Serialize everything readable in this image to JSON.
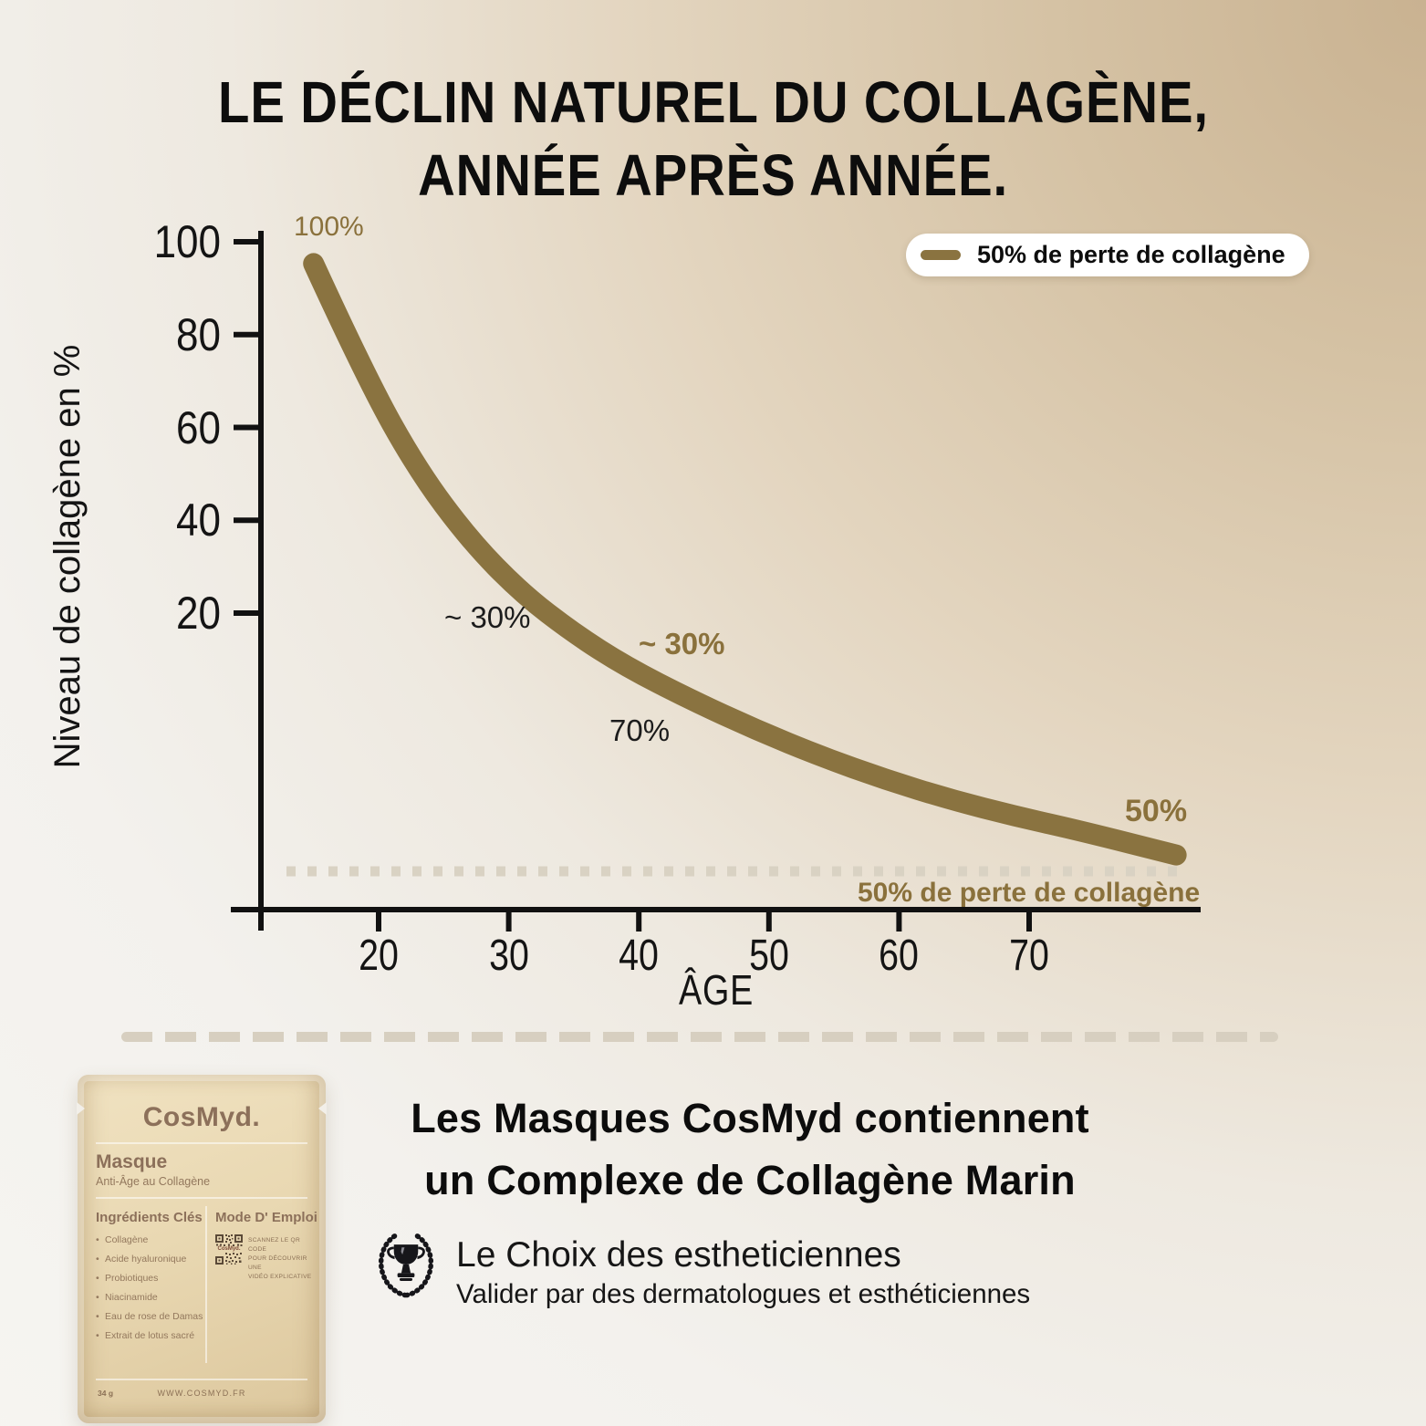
{
  "title": {
    "line1": "LE DÉCLIN NATUREL DU COLLAGÈNE,",
    "line2": "ANNÉE APRÈS ANNÉE."
  },
  "colors": {
    "accent_gold": "#8a7340",
    "gold_text": "#8a713c",
    "dotted_baseline": "#d9d2c3",
    "packet_tan": "#e9d8b2",
    "background_tan": "#d3c0a4"
  },
  "chart_data": {
    "type": "line",
    "title": "Le déclin naturel du collagène, année après année",
    "xlabel": "ÂGE",
    "ylabel": "Niveau de collagène en %",
    "x_ticks": [
      20,
      30,
      40,
      50,
      60,
      70
    ],
    "y_ticks": [
      100,
      80,
      60,
      40,
      20
    ],
    "xlim": [
      13,
      82
    ],
    "ylim": [
      0,
      100
    ],
    "grid": false,
    "legend": {
      "label": "50% de perte de collagène",
      "position": "top-right"
    },
    "series": [
      {
        "name": "Niveau de collagène",
        "color": "#8a7340",
        "stylized": true,
        "x": [
          15,
          19,
          23,
          27,
          31,
          35,
          39,
          44,
          49,
          54,
          59,
          64,
          69,
          74,
          81.3
        ],
        "y": [
          97,
          80,
          66,
          55.5,
          47.5,
          41.5,
          36.5,
          31.5,
          27,
          23,
          19.5,
          16.5,
          14,
          11.8,
          8.2
        ]
      }
    ],
    "annotations": {
      "pct_100": "100%",
      "approx30_dark": "~ 30%",
      "approx30_gold": "~ 30%",
      "pct_70": "70%",
      "pct_50": "50%"
    },
    "baseline": {
      "label": "50% de perte de collagène",
      "style": "dotted"
    }
  },
  "product": {
    "brand": "CosMyd.",
    "type": "Masque",
    "subtitle": "Anti-Âge au Collagène",
    "ingredients_header": "Ingrédients Clés",
    "usage_header": "Mode D' Emploi",
    "ingredients": [
      "Collagène",
      "Acide hyaluronique",
      "Probiotiques",
      "Niacinamide",
      "Eau de rose de Damas",
      "Extrait de lotus sacré"
    ],
    "qr_caption": "CosMyd.",
    "qr_lines": [
      "Scannez le QR code",
      "pour découvrir une",
      "vidéo explicative"
    ],
    "weight": "34 g",
    "website": "WWW.COSMYD.FR"
  },
  "claims": {
    "line1": "Les Masques CosMyd contiennent",
    "line2": "un Complexe de Collagène Marin",
    "choice": "Le Choix des estheticiennes",
    "validation": "Valider par des dermatologues et esthéticiennes"
  }
}
